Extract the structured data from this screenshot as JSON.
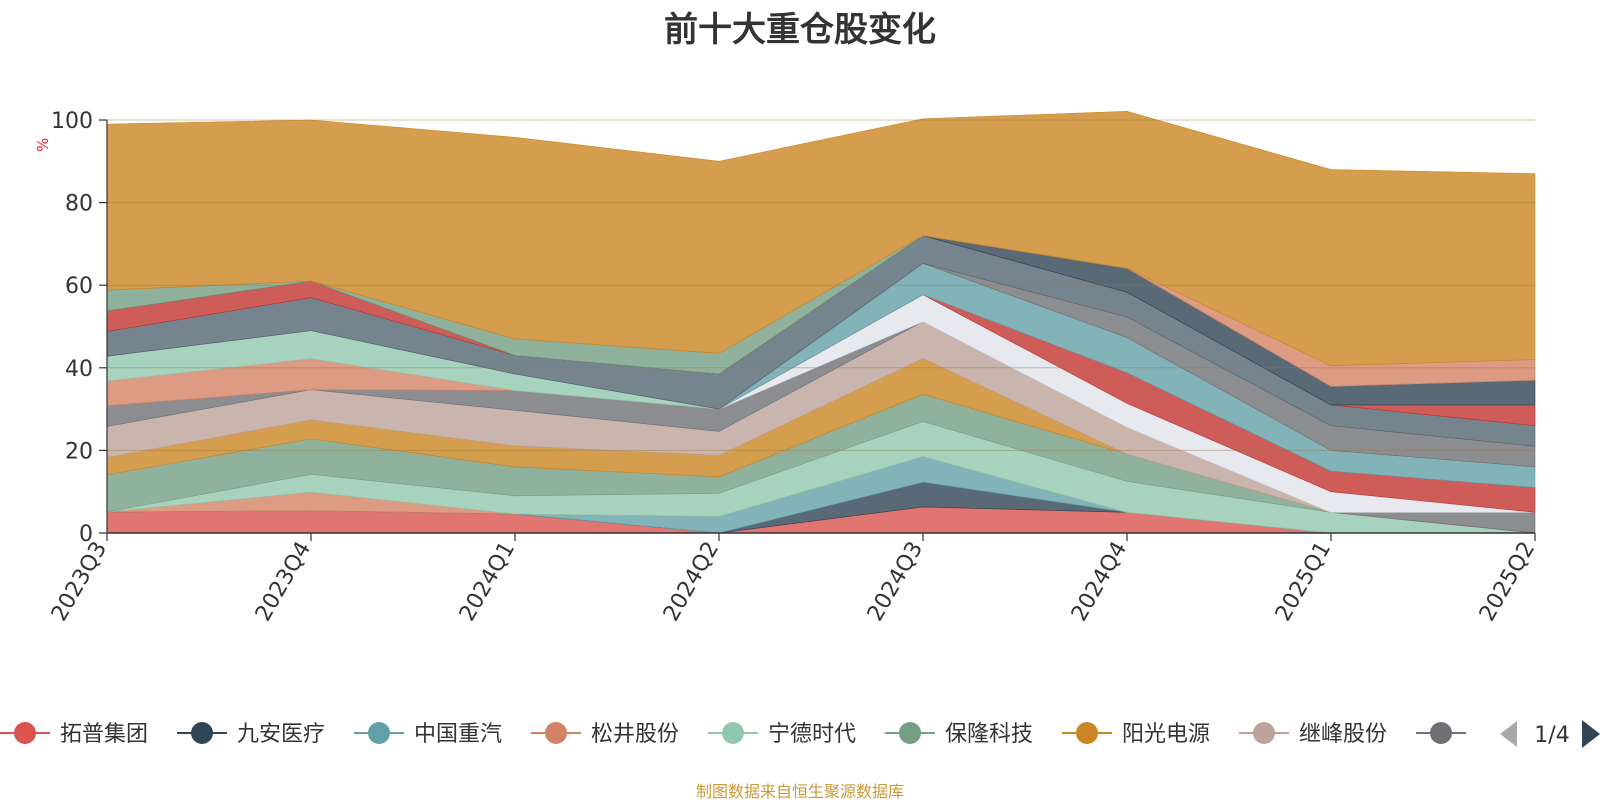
{
  "chart_data": {
    "type": "area",
    "title": "前十大重仓股变化",
    "ylabel": "%",
    "ylim": [
      0,
      100
    ],
    "yticks": [
      0,
      20,
      40,
      60,
      80,
      100
    ],
    "categories": [
      "2023Q3",
      "2023Q4",
      "2024Q1",
      "2024Q2",
      "2024Q3",
      "2024Q4",
      "2025Q1",
      "2025Q2"
    ],
    "series": [
      {
        "name": "拓普集团",
        "color": "#d9534f",
        "values": [
          5.1,
          5.4,
          4.6,
          0.0,
          6.3,
          5.0,
          0.0,
          0.0
        ]
      },
      {
        "name": "九安医疗",
        "color": "#2f4554",
        "values": [
          0.0,
          0.0,
          0.0,
          0.0,
          6.0,
          0.0,
          0.0,
          0.0
        ]
      },
      {
        "name": "中国重汽",
        "color": "#61a0a8",
        "values": [
          0.0,
          0.0,
          0.0,
          4.0,
          6.2,
          0.0,
          0.0,
          0.0
        ]
      },
      {
        "name": "松井股份",
        "color": "#d48265",
        "values": [
          0.0,
          4.5,
          0.0,
          0.0,
          0.0,
          0.0,
          0.0,
          0.0
        ]
      },
      {
        "name": "宁德时代",
        "color": "#91c7ae",
        "values": [
          0.0,
          4.3,
          4.4,
          5.6,
          8.5,
          7.5,
          5.0,
          0.0
        ]
      },
      {
        "name": "保隆科技",
        "color": "#749f83",
        "values": [
          9.0,
          8.6,
          7.0,
          4.0,
          6.6,
          6.6,
          0.0,
          0.0
        ]
      },
      {
        "name": "阳光电源",
        "color": "#ca8622",
        "values": [
          4.2,
          4.6,
          5.1,
          5.2,
          8.7,
          0.0,
          0.0,
          0.0
        ]
      },
      {
        "name": "继峰股份",
        "color": "#bda29a",
        "values": [
          7.5,
          7.3,
          8.6,
          5.8,
          8.9,
          6.5,
          0.0,
          0.0
        ]
      },
      {
        "name": "",
        "color": "#6e7074",
        "values": [
          5.0,
          0.0,
          4.8,
          5.4,
          0.0,
          0.0,
          0.0,
          5.0
        ]
      },
      {
        "name": "",
        "color": "#e1e4ea",
        "values": [
          0.0,
          0.0,
          0.0,
          0.0,
          6.5,
          5.8,
          5.0,
          0.0
        ]
      },
      {
        "name": "",
        "color": "#c23531",
        "values": [
          0.0,
          0.0,
          0.0,
          0.0,
          0.0,
          7.4,
          5.0,
          6.0
        ]
      },
      {
        "name": "",
        "color": "#61a0a8",
        "values": [
          0.0,
          0.0,
          0.0,
          0.0,
          7.6,
          8.5,
          5.0,
          5.0
        ]
      },
      {
        "name": "",
        "color": "#d48265",
        "values": [
          6.0,
          7.5,
          0.0,
          0.0,
          0.0,
          0.0,
          0.0,
          0.0
        ]
      },
      {
        "name": "",
        "color": "#91c7ae",
        "values": [
          6.0,
          6.8,
          4.0,
          0.0,
          0.0,
          0.0,
          0.0,
          0.0
        ]
      },
      {
        "name": "",
        "color": "#6e7074",
        "values": [
          0.0,
          0.0,
          0.0,
          0.0,
          0.0,
          5.0,
          6.0,
          5.0
        ]
      },
      {
        "name": "",
        "color": "#546570",
        "values": [
          6.0,
          8.0,
          4.5,
          8.5,
          6.7,
          6.0,
          5.0,
          5.0
        ]
      },
      {
        "name": "",
        "color": "#c23531",
        "values": [
          5.0,
          4.0,
          0.0,
          0.0,
          0.0,
          0.0,
          0.0,
          5.0
        ]
      },
      {
        "name": "",
        "color": "#2f4554",
        "values": [
          0.0,
          0.0,
          0.0,
          0.0,
          0.0,
          5.8,
          4.5,
          6.0
        ]
      },
      {
        "name": "",
        "color": "#749f83",
        "values": [
          5.0,
          0.0,
          4.0,
          5.0,
          0.0,
          0.0,
          0.0,
          0.0
        ]
      },
      {
        "name": "",
        "color": "#d48265",
        "values": [
          0.0,
          0.0,
          0.0,
          0.0,
          0.0,
          0.0,
          5.0,
          5.0
        ]
      },
      {
        "name": "",
        "color": "#ca8622",
        "values": [
          40.2,
          39.0,
          48.8,
          46.5,
          28.3,
          38.0,
          47.5,
          45.0
        ]
      }
    ]
  },
  "legend": {
    "page_indicator": "1/4",
    "items": [
      "拓普集团",
      "九安医疗",
      "中国重汽",
      "松井股份",
      "宁德时代",
      "保隆科技",
      "阳光电源",
      "继峰股份",
      ""
    ]
  },
  "footer": {
    "source": "制图数据来自恒生聚源数据库"
  }
}
